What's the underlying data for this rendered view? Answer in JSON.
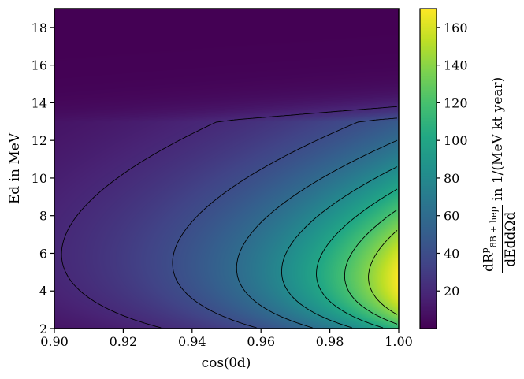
{
  "chart_data": {
    "type": "heatmap",
    "colormap": "viridis",
    "xlabel": "cos(θd)",
    "ylabel": "Ed in MeV",
    "xlim": [
      0.9,
      1.0
    ],
    "ylim": [
      2,
      19
    ],
    "xticks": [
      "0.90",
      "0.92",
      "0.94",
      "0.96",
      "0.98",
      "1.00"
    ],
    "yticks": [
      "2",
      "4",
      "6",
      "8",
      "10",
      "12",
      "14",
      "16",
      "18"
    ],
    "colorbar": {
      "label_numerator": "dR",
      "label_sup": "p",
      "label_sub": "8B + hep",
      "label_denominator": "dEddΩd",
      "label_units": "in 1/(MeV kt year)",
      "range": [
        0,
        170
      ],
      "ticks": [
        "20",
        "40",
        "60",
        "80",
        "100",
        "120",
        "140",
        "160"
      ]
    },
    "contour_levels": [
      20,
      40,
      60,
      80,
      100,
      120,
      140
    ],
    "peak": {
      "x": 1.0,
      "y": 4.6,
      "value": 170
    }
  }
}
